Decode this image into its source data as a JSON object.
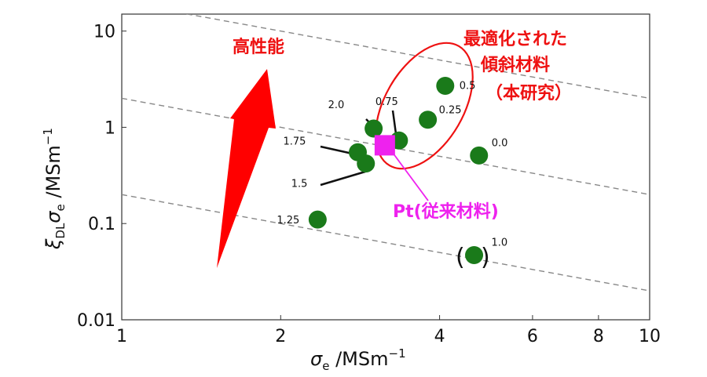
{
  "chart_data": {
    "type": "scatter",
    "title": "",
    "x_scale": "log",
    "y_scale": "log",
    "xlim": [
      1,
      10
    ],
    "ylim": [
      0.01,
      15
    ],
    "x_ticks": [
      {
        "value": 1,
        "label": "1"
      },
      {
        "value": 2,
        "label": "2"
      },
      {
        "value": 4,
        "label": "4"
      },
      {
        "value": 6,
        "label": "6"
      },
      {
        "value": 8,
        "label": "8"
      },
      {
        "value": 10,
        "label": "10"
      }
    ],
    "y_ticks": [
      {
        "value": 0.01,
        "label": "0.01"
      },
      {
        "value": 0.1,
        "label": "0.1"
      },
      {
        "value": 1,
        "label": "1"
      },
      {
        "value": 10,
        "label": "10"
      }
    ],
    "xlabel": {
      "main": "σ",
      "sub": "e",
      "unit": " /MSm",
      "sup": "−1"
    },
    "ylabel": {
      "main": "ξ",
      "sub1": "DL",
      "main2": "σ",
      "sub2": "e",
      "unit": " /MSm",
      "sup": "−1"
    },
    "points": [
      {
        "label": "0.5",
        "x": 4.1,
        "y": 2.7
      },
      {
        "label": "0.75",
        "x": 3.35,
        "y": 0.73
      },
      {
        "label": "0.25",
        "x": 3.8,
        "y": 1.2
      },
      {
        "label": "2.0",
        "x": 3.0,
        "y": 0.97
      },
      {
        "label": "1.75",
        "x": 2.8,
        "y": 0.55
      },
      {
        "label": "1.5",
        "x": 2.9,
        "y": 0.42
      },
      {
        "label": "0.0",
        "x": 4.75,
        "y": 0.51
      },
      {
        "label": "1.25",
        "x": 2.35,
        "y": 0.11
      },
      {
        "label": "1.0",
        "x": 4.65,
        "y": 0.047
      }
    ],
    "reference_point": {
      "label": "Pt(従来材料)",
      "x": 3.15,
      "y": 0.65
    },
    "guide_lines_constant_products": [
      0.2,
      2,
      20,
      200
    ],
    "grid": false,
    "colors": {
      "points": "#1a7a1a",
      "reference": "#ee22ee",
      "highlight": "#ee1111",
      "guides": "#888888"
    }
  },
  "annotations": {
    "arrow_label": "高性能",
    "ellipse_label": [
      "最適化された",
      "傾斜材料",
      "（本研究）"
    ],
    "pt_label": "Pt(従来材料)",
    "paren_left": "(",
    "paren_right": ")"
  }
}
